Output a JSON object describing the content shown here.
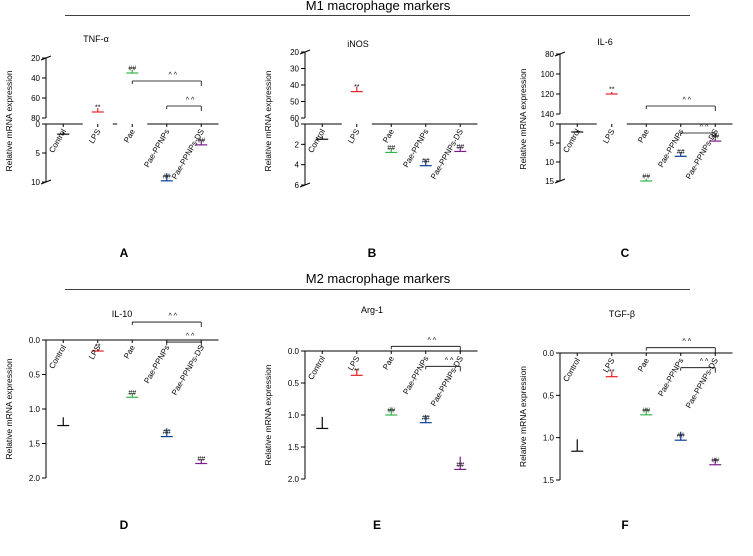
{
  "sections": [
    {
      "title": "M1 macrophage markers"
    },
    {
      "title": "M2 macrophage markers"
    }
  ],
  "colors": {
    "Control": "#0a0a0a",
    "LPS": "#e8202a",
    "Pae": "#33b44a",
    "Pae-PPNPs": "#0b3e96",
    "Pae-PPNPs-DS": "#7d1c8e"
  },
  "chart_data": [
    {
      "panel": "A",
      "type": "bar",
      "title": "TNF-α",
      "ylabel": "Relative mRNA expression",
      "categories": [
        "Control",
        "LPS",
        "Pae",
        "Pae-PPNPs",
        "Pae-PPNPs-DS"
      ],
      "values": [
        1.4,
        70,
        32,
        8.5,
        2.8
      ],
      "errors": [
        0.35,
        4,
        3,
        1.3,
        0.8
      ],
      "sig_above": [
        "",
        "**",
        "##",
        "##",
        "##"
      ],
      "axis_break": true,
      "segments": [
        {
          "range": [
            0,
            10
          ],
          "ticks": [
            0,
            5,
            10
          ]
        },
        {
          "range": [
            20,
            80
          ],
          "ticks": [
            20,
            40,
            60,
            80
          ]
        }
      ],
      "brackets": [
        {
          "from": "Pae",
          "to": "Pae-PPNPs-DS",
          "label": "^ ^"
        },
        {
          "from": "Pae-PPNPs",
          "to": "Pae-PPNPs-DS",
          "label": "^ ^"
        }
      ]
    },
    {
      "panel": "B",
      "type": "bar",
      "title": "iNOS",
      "ylabel": "Relative mRNA expression",
      "categories": [
        "Control",
        "LPS",
        "Pae",
        "Pae-PPNPs",
        "Pae-PPNPs-DS"
      ],
      "values": [
        1.2,
        41,
        2.4,
        3.5,
        2.2
      ],
      "errors": [
        0.3,
        3,
        0.4,
        0.6,
        0.5
      ],
      "sig_above": [
        "",
        "**",
        "##",
        "##",
        "##"
      ],
      "axis_break": true,
      "segments": [
        {
          "range": [
            0,
            6
          ],
          "ticks": [
            0,
            2,
            4,
            6
          ]
        },
        {
          "range": [
            20,
            60
          ],
          "ticks": [
            20,
            30,
            40,
            50,
            60
          ]
        }
      ],
      "brackets": []
    },
    {
      "panel": "C",
      "type": "bar",
      "title": "IL-6",
      "ylabel": "Relative mRNA expression",
      "categories": [
        "Control",
        "LPS",
        "Pae",
        "Pae-PPNPs",
        "Pae-PPNPs-DS"
      ],
      "values": [
        1.8,
        118,
        14.5,
        7.5,
        3.8
      ],
      "errors": [
        0.3,
        2,
        0.5,
        1,
        0.7
      ],
      "sig_above": [
        "",
        "**",
        "##",
        "##",
        "##"
      ],
      "axis_break": true,
      "segments": [
        {
          "range": [
            0,
            15
          ],
          "ticks": [
            0,
            5,
            10,
            15
          ]
        },
        {
          "range": [
            80,
            140
          ],
          "ticks": [
            80,
            100,
            120,
            140
          ]
        }
      ],
      "brackets": [
        {
          "from": "Pae",
          "to": "Pae-PPNPs-DS",
          "label": "^ ^"
        },
        {
          "from": "Pae-PPNPs",
          "to": "Pae-PPNPs-DS",
          "label": "^ ^"
        }
      ]
    },
    {
      "panel": "D",
      "type": "bar",
      "title": "IL-10",
      "ylabel": "Relative mRNA expression",
      "categories": [
        "Control",
        "LPS",
        "Pae",
        "Pae-PPNPs",
        "Pae-PPNPs-DS"
      ],
      "values": [
        1.12,
        0.13,
        0.77,
        1.28,
        1.73
      ],
      "errors": [
        0.12,
        0.03,
        0.06,
        0.12,
        0.06
      ],
      "sig_above": [
        "",
        "**",
        "##",
        "##",
        "##"
      ],
      "axis_break": false,
      "segments": [
        {
          "range": [
            0,
            2.0
          ],
          "ticks": [
            0.0,
            0.5,
            1.0,
            1.5,
            2.0
          ]
        }
      ],
      "brackets": [
        {
          "from": "Pae",
          "to": "Pae-PPNPs-DS",
          "label": "^ ^"
        },
        {
          "from": "Pae-PPNPs",
          "to": "Pae-PPNPs-DS",
          "label": "^ ^"
        }
      ]
    },
    {
      "panel": "E",
      "type": "bar",
      "title": "Arg-1",
      "ylabel": "Relative mRNA expression",
      "categories": [
        "Control",
        "LPS",
        "Pae",
        "Pae-PPNPs",
        "Pae-PPNPs-DS"
      ],
      "values": [
        1.03,
        0.28,
        0.88,
        1.0,
        1.65
      ],
      "errors": [
        0.18,
        0.1,
        0.12,
        0.12,
        0.2
      ],
      "sig_above": [
        "",
        "**",
        "##",
        "##",
        "##"
      ],
      "axis_break": false,
      "segments": [
        {
          "range": [
            0,
            2.0
          ],
          "ticks": [
            0.0,
            0.5,
            1.0,
            1.5,
            2.0
          ]
        }
      ],
      "brackets": [
        {
          "from": "Pae",
          "to": "Pae-PPNPs-DS",
          "label": "^ ^"
        },
        {
          "from": "Pae-PPNPs",
          "to": "Pae-PPNPs-DS",
          "label": "^ ^"
        }
      ]
    },
    {
      "panel": "F",
      "type": "bar",
      "title": "TGF-β",
      "ylabel": "Relative mRNA expression",
      "categories": [
        "Control",
        "LPS",
        "Pae",
        "Pae-PPNPs",
        "Pae-PPNPs-DS"
      ],
      "values": [
        1.02,
        0.22,
        0.65,
        0.93,
        1.24
      ],
      "errors": [
        0.14,
        0.06,
        0.08,
        0.1,
        0.08
      ],
      "sig_above": [
        "",
        "**",
        "##",
        "##",
        "##"
      ],
      "axis_break": false,
      "segments": [
        {
          "range": [
            0,
            1.5
          ],
          "ticks": [
            0.0,
            0.5,
            1.0,
            1.5
          ]
        }
      ],
      "brackets": [
        {
          "from": "Pae",
          "to": "Pae-PPNPs-DS",
          "label": "^ ^"
        },
        {
          "from": "Pae-PPNPs",
          "to": "Pae-PPNPs-DS",
          "label": "^ ^"
        }
      ]
    }
  ]
}
